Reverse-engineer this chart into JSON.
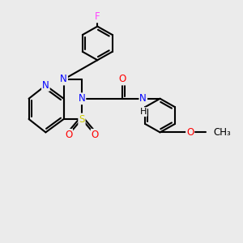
{
  "bg_color": "#ebebeb",
  "atom_colors": {
    "N": "#0000ff",
    "O": "#ff0000",
    "S": "#cccc00",
    "F": "#ff44ff"
  },
  "bond_color": "#000000",
  "lw": 1.5,
  "fs": 8.5,
  "figsize": [
    3.0,
    3.0
  ],
  "dpi": 100
}
